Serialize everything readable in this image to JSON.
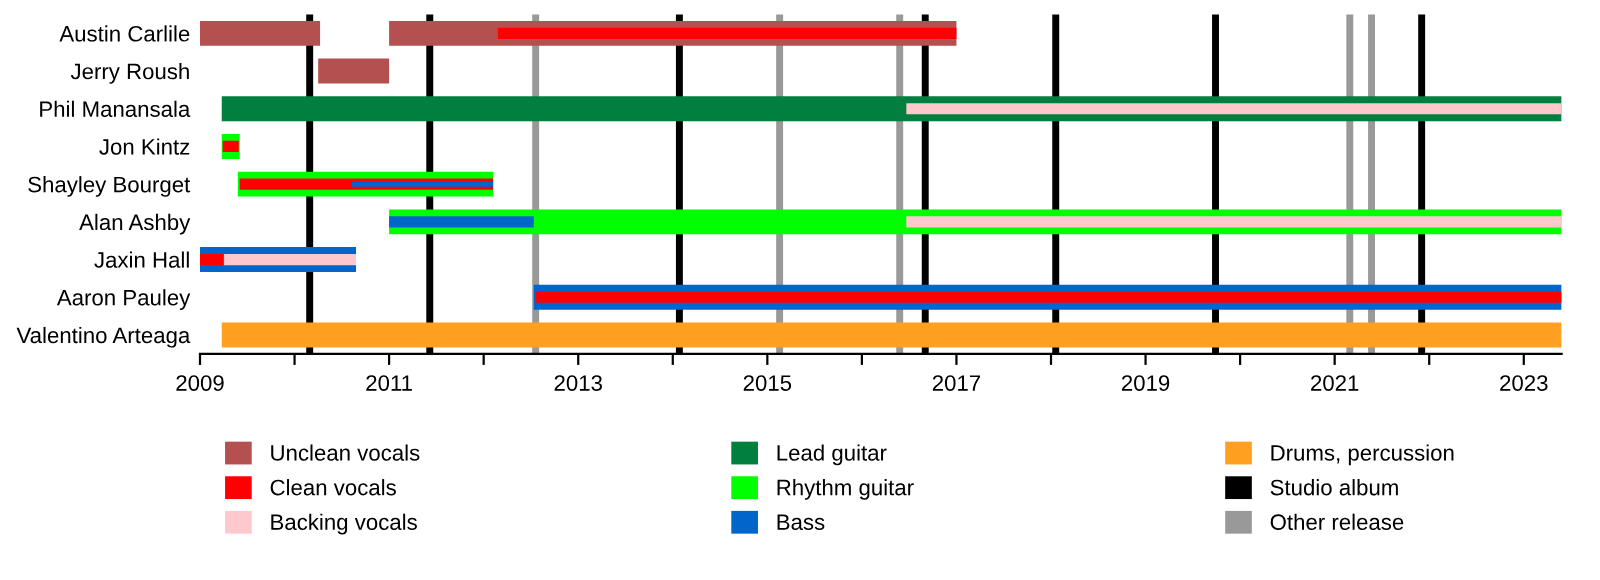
{
  "chart_data": {
    "type": "bar",
    "orientation": "horizontal",
    "categories": [
      "Austin Carlile",
      "Jerry Roush",
      "Phil Manansala",
      "Jon Kintz",
      "Shayley Bourget",
      "Alan Ashby",
      "Jaxin Hall",
      "Aaron Pauley",
      "Valentino Arteaga"
    ],
    "series": [
      {
        "name": "Unclean vocals",
        "color": "#b55050",
        "base": [
          2009,
          2010.25,
          null,
          null,
          null,
          null,
          null,
          null,
          null
        ],
        "values": [
          1.27,
          0.75,
          null,
          null,
          null,
          null,
          null,
          null,
          null
        ]
      },
      {
        "name": "Clean vocals",
        "color": "#ff0000",
        "base": [
          2012.15,
          null,
          null,
          2009.24,
          2009.42,
          null,
          2009,
          2012.55,
          null
        ],
        "values": [
          4.85,
          null,
          null,
          0.17,
          2.68,
          null,
          0.25,
          10.85,
          null
        ]
      },
      {
        "name": "Backing vocals",
        "color": "#ffc8cc",
        "base": [
          null,
          null,
          2016.47,
          null,
          null,
          2016.47,
          2009.25,
          null,
          null
        ],
        "values": [
          null,
          null,
          6.93,
          null,
          null,
          6.93,
          1.4,
          null,
          null
        ]
      },
      {
        "name": "Lead guitar",
        "color": "#007f3f",
        "base": [
          null,
          null,
          2009.23,
          null,
          null,
          null,
          null,
          null,
          null
        ],
        "values": [
          null,
          null,
          14.17,
          null,
          null,
          null,
          null,
          null,
          null
        ]
      },
      {
        "name": "Rhythm guitar",
        "color": "#00ff00",
        "base": [
          null,
          null,
          null,
          2009.23,
          2009.4,
          2011,
          null,
          null,
          null
        ],
        "values": [
          null,
          null,
          null,
          0.19,
          2.7,
          12.4,
          null,
          null,
          null
        ]
      },
      {
        "name": "Bass",
        "color": "#0066cc",
        "base": [
          null,
          null,
          null,
          null,
          2010.6,
          2011,
          2009,
          2012.53,
          null
        ],
        "values": [
          null,
          null,
          null,
          null,
          1.5,
          1.53,
          1.65,
          10.87,
          null
        ]
      },
      {
        "name": "Drums, percussion",
        "color": "#ffa020",
        "base": [
          null,
          null,
          null,
          null,
          null,
          null,
          null,
          null,
          2009.23
        ],
        "values": [
          null,
          null,
          null,
          null,
          null,
          null,
          null,
          null,
          14.17
        ]
      },
      {
        "color": "#b55050",
        "base": [
          2011.0,
          null,
          null,
          null,
          null,
          null,
          null,
          null,
          null
        ],
        "values": [
          6.0,
          null,
          null,
          null,
          null,
          null,
          null,
          null,
          null
        ]
      }
    ],
    "ref_lines": [
      {
        "axis": "x",
        "value": 2010.16,
        "label": "Studio album",
        "color": "#000000"
      },
      {
        "axis": "x",
        "value": 2011.43,
        "color": "#000000"
      },
      {
        "axis": "x",
        "value": 2014.07,
        "color": "#000000"
      },
      {
        "axis": "x",
        "value": 2016.67,
        "color": "#000000"
      },
      {
        "axis": "x",
        "value": 2018.05,
        "color": "#000000"
      },
      {
        "axis": "x",
        "value": 2019.74,
        "color": "#000000"
      },
      {
        "axis": "x",
        "value": 2021.92,
        "color": "#000000"
      },
      {
        "axis": "x",
        "value": 2012.55,
        "label": "Other release",
        "color": "#999999"
      },
      {
        "axis": "x",
        "value": 2015.13,
        "color": "#999999"
      },
      {
        "axis": "x",
        "value": 2016.4,
        "color": "#999999"
      },
      {
        "axis": "x",
        "value": 2021.16,
        "color": "#999999"
      },
      {
        "axis": "x",
        "value": 2021.39,
        "color": "#999999"
      }
    ],
    "xlim": [
      2009,
      2023.4
    ],
    "xticks": [
      2009,
      {
        "value": 2010,
        "label": null
      },
      2011,
      {
        "value": 2012,
        "label": null
      },
      2013,
      {
        "value": 2014,
        "label": null
      },
      2015,
      {
        "value": 2016,
        "label": null
      },
      2017,
      {
        "value": 2018,
        "label": null
      },
      2019,
      {
        "value": 2020,
        "label": null
      },
      2021,
      {
        "value": 2022,
        "label": null
      },
      2023
    ],
    "grid": false,
    "legend": "bottom"
  }
}
